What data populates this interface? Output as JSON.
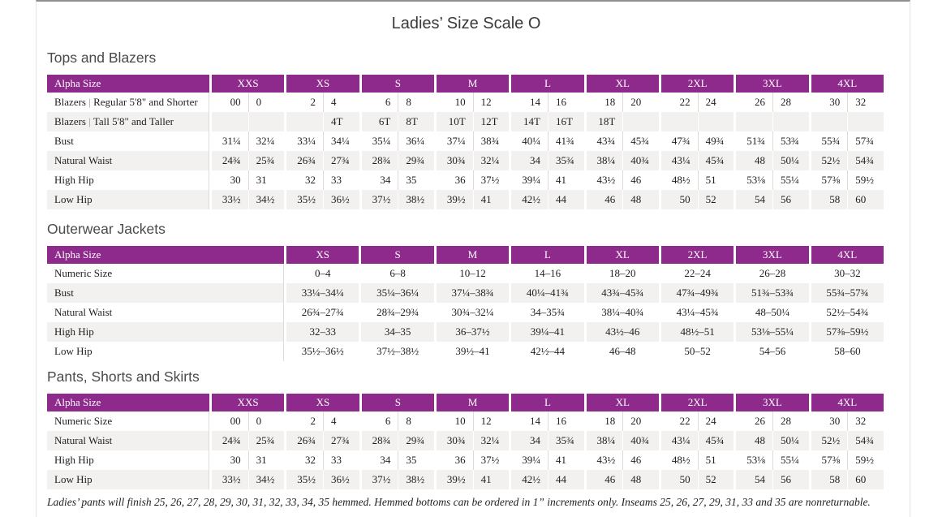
{
  "page": {
    "title": "Ladies’ Size Scale O",
    "footnote": "Ladies’ pants will finish 25, 26, 27, 28, 29, 30, 31, 32, 33, 34, 35 hemmed. Hemmed bottoms can be ordered in 1” increments only. Inseams 25, 26, 27, 29, 31, 33 and 35 are nonreturnable."
  },
  "colors": {
    "accent_purple": "#8e2a8b",
    "stripe_gray": "#f2f1ef",
    "divider_gray": "#dcdbd9"
  },
  "tables": [
    {
      "section": "Tops and Blazers",
      "type": "paired",
      "header_label": "Alpha Size",
      "sizes": [
        "XXS",
        "XS",
        "S",
        "M",
        "L",
        "XL",
        "2XL",
        "3XL",
        "4XL"
      ],
      "rows": [
        {
          "label": "Blazers  |  Regular 5'8\" and Shorter",
          "values": [
            [
              "00",
              "0"
            ],
            [
              "2",
              "4"
            ],
            [
              "6",
              "8"
            ],
            [
              "10",
              "12"
            ],
            [
              "14",
              "16"
            ],
            [
              "18",
              "20"
            ],
            [
              "22",
              "24"
            ],
            [
              "26",
              "28"
            ],
            [
              "30",
              "32"
            ]
          ]
        },
        {
          "label": "Blazers  |  Tall 5'8\" and Taller",
          "values": [
            [
              "",
              ""
            ],
            [
              "",
              "4T"
            ],
            [
              "6T",
              "8T"
            ],
            [
              "10T",
              "12T"
            ],
            [
              "14T",
              "16T"
            ],
            [
              "18T",
              ""
            ],
            [
              "",
              ""
            ],
            [
              "",
              ""
            ],
            [
              "",
              ""
            ]
          ]
        },
        {
          "label": "Bust",
          "values": [
            [
              "31¼",
              "32¼"
            ],
            [
              "33¼",
              "34¼"
            ],
            [
              "35¼",
              "36¼"
            ],
            [
              "37¼",
              "38¾"
            ],
            [
              "40¼",
              "41¾"
            ],
            [
              "43¾",
              "45¾"
            ],
            [
              "47¾",
              "49¾"
            ],
            [
              "51¾",
              "53¾"
            ],
            [
              "55¾",
              "57¾"
            ]
          ]
        },
        {
          "label": "Natural Waist",
          "values": [
            [
              "24¾",
              "25¾"
            ],
            [
              "26¾",
              "27¾"
            ],
            [
              "28¾",
              "29¾"
            ],
            [
              "30¾",
              "32¼"
            ],
            [
              "34",
              "35¾"
            ],
            [
              "38¼",
              "40¾"
            ],
            [
              "43¼",
              "45¾"
            ],
            [
              "48",
              "50¼"
            ],
            [
              "52½",
              "54¾"
            ]
          ]
        },
        {
          "label": "High Hip",
          "values": [
            [
              "30",
              "31"
            ],
            [
              "32",
              "33"
            ],
            [
              "34",
              "35"
            ],
            [
              "36",
              "37½"
            ],
            [
              "39¼",
              "41"
            ],
            [
              "43½",
              "46"
            ],
            [
              "48½",
              "51"
            ],
            [
              "53⅛",
              "55¼"
            ],
            [
              "57⅜",
              "59½"
            ]
          ]
        },
        {
          "label": "Low Hip",
          "values": [
            [
              "33½",
              "34½"
            ],
            [
              "35½",
              "36½"
            ],
            [
              "37½",
              "38½"
            ],
            [
              "39½",
              "41"
            ],
            [
              "42½",
              "44"
            ],
            [
              "46",
              "48"
            ],
            [
              "50",
              "52"
            ],
            [
              "54",
              "56"
            ],
            [
              "58",
              "60"
            ]
          ]
        }
      ]
    },
    {
      "section": "Outerwear Jackets",
      "type": "single",
      "header_label": "Alpha Size",
      "sizes": [
        "XS",
        "S",
        "M",
        "L",
        "XL",
        "2XL",
        "3XL",
        "4XL"
      ],
      "rows": [
        {
          "label": "Numeric Size",
          "values": [
            "0–4",
            "6–8",
            "10–12",
            "14–16",
            "18–20",
            "22–24",
            "26–28",
            "30–32"
          ]
        },
        {
          "label": "Bust",
          "values": [
            "33¼–34¼",
            "35¼–36¼",
            "37¼–38¾",
            "40¼–41¾",
            "43¾–45¾",
            "47¾–49¾",
            "51¾–53¾",
            "55¾–57¾"
          ]
        },
        {
          "label": "Natural Waist",
          "values": [
            "26¾–27¾",
            "28¾–29¾",
            "30¾–32¼",
            "34–35¾",
            "38¼–40¾",
            "43¼–45¾",
            "48–50¼",
            "52½–54¾"
          ]
        },
        {
          "label": "High Hip",
          "values": [
            "32–33",
            "34–35",
            "36–37½",
            "39¼–41",
            "43½–46",
            "48½–51",
            "53⅛–55¼",
            "57⅜–59½"
          ]
        },
        {
          "label": "Low Hip",
          "values": [
            "35½–36½",
            "37½–38½",
            "39½–41",
            "42½–44",
            "46–48",
            "50–52",
            "54–56",
            "58–60"
          ]
        }
      ]
    },
    {
      "section": "Pants, Shorts and Skirts",
      "type": "paired",
      "header_label": "Alpha Size",
      "sizes": [
        "XXS",
        "XS",
        "S",
        "M",
        "L",
        "XL",
        "2XL",
        "3XL",
        "4XL"
      ],
      "rows": [
        {
          "label": "Numeric Size",
          "values": [
            [
              "00",
              "0"
            ],
            [
              "2",
              "4"
            ],
            [
              "6",
              "8"
            ],
            [
              "10",
              "12"
            ],
            [
              "14",
              "16"
            ],
            [
              "18",
              "20"
            ],
            [
              "22",
              "24"
            ],
            [
              "26",
              "28"
            ],
            [
              "30",
              "32"
            ]
          ]
        },
        {
          "label": "Natural Waist",
          "values": [
            [
              "24¾",
              "25¾"
            ],
            [
              "26¾",
              "27¾"
            ],
            [
              "28¾",
              "29¾"
            ],
            [
              "30¾",
              "32¼"
            ],
            [
              "34",
              "35¾"
            ],
            [
              "38¼",
              "40¾"
            ],
            [
              "43¼",
              "45¾"
            ],
            [
              "48",
              "50¼"
            ],
            [
              "52½",
              "54¾"
            ]
          ]
        },
        {
          "label": "High Hip",
          "values": [
            [
              "30",
              "31"
            ],
            [
              "32",
              "33"
            ],
            [
              "34",
              "35"
            ],
            [
              "36",
              "37½"
            ],
            [
              "39¼",
              "41"
            ],
            [
              "43½",
              "46"
            ],
            [
              "48½",
              "51"
            ],
            [
              "53⅛",
              "55¼"
            ],
            [
              "57⅜",
              "59½"
            ]
          ]
        },
        {
          "label": "Low Hip",
          "values": [
            [
              "33½",
              "34½"
            ],
            [
              "35½",
              "36½"
            ],
            [
              "37½",
              "38½"
            ],
            [
              "39½",
              "41"
            ],
            [
              "42½",
              "44"
            ],
            [
              "46",
              "48"
            ],
            [
              "50",
              "52"
            ],
            [
              "54",
              "56"
            ],
            [
              "58",
              "60"
            ]
          ]
        }
      ]
    }
  ]
}
